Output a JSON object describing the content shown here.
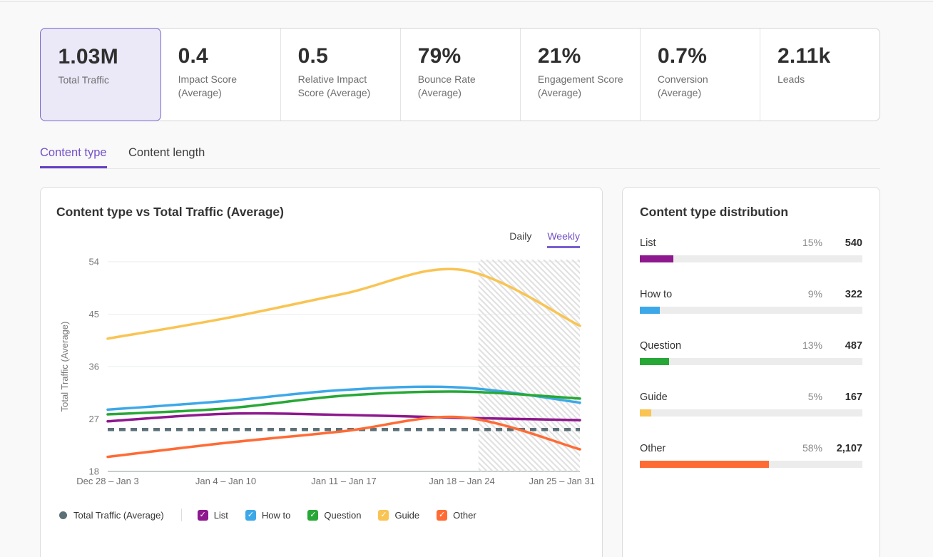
{
  "kpis": {
    "items": [
      {
        "value": "1.03M",
        "label": "Total Traffic",
        "selected": true
      },
      {
        "value": "0.4",
        "label": "Impact Score (Average)"
      },
      {
        "value": "0.5",
        "label": "Relative Impact Score (Average)"
      },
      {
        "value": "79%",
        "label": "Bounce Rate (Average)"
      },
      {
        "value": "21%",
        "label": "Engagement Score (Average)"
      },
      {
        "value": "0.7%",
        "label": "Conversion (Average)"
      },
      {
        "value": "2.11k",
        "label": "Leads"
      }
    ]
  },
  "tabs": {
    "items": [
      {
        "label": "Content type",
        "active": true
      },
      {
        "label": "Content length",
        "active": false
      }
    ]
  },
  "chart_card": {
    "title": "Content type vs Total Traffic (Average)",
    "granularity": {
      "options": [
        "Daily",
        "Weekly"
      ],
      "selected": "Weekly"
    }
  },
  "chart_data": {
    "type": "line",
    "x": [
      "Dec 28 – Jan 3",
      "Jan 4 – Jan 10",
      "Jan 11 – Jan 17",
      "Jan 18 – Jan 24",
      "Jan 25 – Jan 31"
    ],
    "ylabel": "Total Traffic (Average)",
    "ylim": [
      18,
      54
    ],
    "yticks": [
      18,
      27,
      36,
      45,
      54
    ],
    "grid": "horizontal",
    "legend_position": "bottom",
    "series": [
      {
        "name": "List",
        "color": "#8e188e",
        "values": [
          26.6,
          27.9,
          27.7,
          27.2,
          26.8
        ]
      },
      {
        "name": "How to",
        "color": "#3da8e8",
        "values": [
          28.6,
          30.1,
          32.0,
          32.4,
          29.8
        ]
      },
      {
        "name": "Question",
        "color": "#27a836",
        "values": [
          27.8,
          28.8,
          31.0,
          31.7,
          30.5
        ]
      },
      {
        "name": "Guide",
        "color": "#f9c453",
        "values": [
          40.8,
          44.3,
          48.5,
          52.6,
          43.0
        ]
      },
      {
        "name": "Other",
        "color": "#ff6b35",
        "values": [
          20.5,
          22.9,
          24.9,
          27.3,
          21.8
        ]
      }
    ],
    "reference_line": {
      "name": "Total Traffic (Average)",
      "value": 25.2,
      "style": "dashed",
      "color": "#5c7078"
    },
    "forecast_region": {
      "hatched": true,
      "from_x_fraction": 0.785
    }
  },
  "distribution_card": {
    "title": "Content type distribution",
    "rows": [
      {
        "name": "List",
        "percent": "15%",
        "percent_value": 15,
        "count": "540",
        "color": "#8e188e"
      },
      {
        "name": "How to",
        "percent": "9%",
        "percent_value": 9,
        "count": "322",
        "color": "#3da8e8"
      },
      {
        "name": "Question",
        "percent": "13%",
        "percent_value": 13,
        "count": "487",
        "color": "#27a836"
      },
      {
        "name": "Guide",
        "percent": "5%",
        "percent_value": 5,
        "count": "167",
        "color": "#f9c453"
      },
      {
        "name": "Other",
        "percent": "58%",
        "percent_value": 58,
        "count": "2,107",
        "color": "#ff6b35"
      }
    ]
  }
}
